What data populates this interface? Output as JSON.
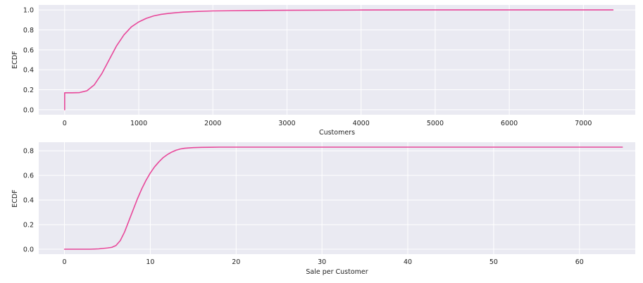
{
  "chart_data": [
    {
      "type": "line",
      "title": "",
      "xlabel": "Customers",
      "ylabel": "ECDF",
      "xlim": [
        -350,
        7700
      ],
      "ylim": [
        -0.05,
        1.05
      ],
      "xticks": [
        0,
        1000,
        2000,
        3000,
        4000,
        5000,
        6000,
        7000
      ],
      "yticks": [
        0.0,
        0.2,
        0.4,
        0.6,
        0.8,
        1.0
      ],
      "xtick_labels": [
        "0",
        "1000",
        "2000",
        "3000",
        "4000",
        "5000",
        "6000",
        "7000"
      ],
      "ytick_labels": [
        "0.0",
        "0.2",
        "0.4",
        "0.6",
        "0.8",
        "1.0"
      ],
      "grid": true,
      "series": [
        {
          "color": "#e8489a",
          "x": [
            0,
            0,
            100,
            200,
            300,
            400,
            500,
            600,
            700,
            800,
            900,
            1000,
            1100,
            1200,
            1300,
            1400,
            1500,
            1600,
            1800,
            2000,
            2500,
            3000,
            4000,
            5000,
            6000,
            7000,
            7400
          ],
          "y": [
            0.0,
            0.17,
            0.17,
            0.172,
            0.19,
            0.25,
            0.36,
            0.5,
            0.64,
            0.75,
            0.83,
            0.88,
            0.915,
            0.94,
            0.955,
            0.965,
            0.972,
            0.978,
            0.985,
            0.99,
            0.994,
            0.997,
            0.999,
            1.0,
            1.0,
            1.0,
            1.0
          ]
        }
      ]
    },
    {
      "type": "line",
      "title": "",
      "xlabel": "Sale per Customer",
      "ylabel": "ECDF",
      "xlim": [
        -3,
        66.5
      ],
      "ylim": [
        -0.04,
        0.87
      ],
      "xticks": [
        0,
        10,
        20,
        30,
        40,
        50,
        60
      ],
      "yticks": [
        0.0,
        0.2,
        0.4,
        0.6,
        0.8
      ],
      "xtick_labels": [
        "0",
        "10",
        "20",
        "30",
        "40",
        "50",
        "60"
      ],
      "ytick_labels": [
        "0.0",
        "0.2",
        "0.4",
        "0.6",
        "0.8"
      ],
      "grid": true,
      "series": [
        {
          "color": "#e8489a",
          "x": [
            0,
            1,
            2,
            3,
            4,
            5,
            5.5,
            6,
            6.5,
            7,
            7.5,
            8,
            8.5,
            9,
            9.5,
            10,
            10.5,
            11,
            11.5,
            12,
            12.5,
            13,
            13.5,
            14,
            15,
            16,
            17,
            18,
            20,
            30,
            40,
            50,
            60,
            65
          ],
          "y": [
            0.0,
            0.0,
            0.0,
            0.0,
            0.003,
            0.01,
            0.015,
            0.03,
            0.07,
            0.14,
            0.23,
            0.32,
            0.41,
            0.49,
            0.56,
            0.62,
            0.67,
            0.71,
            0.745,
            0.77,
            0.79,
            0.805,
            0.815,
            0.821,
            0.826,
            0.828,
            0.829,
            0.83,
            0.83,
            0.83,
            0.83,
            0.83,
            0.83,
            0.83
          ]
        }
      ]
    }
  ]
}
